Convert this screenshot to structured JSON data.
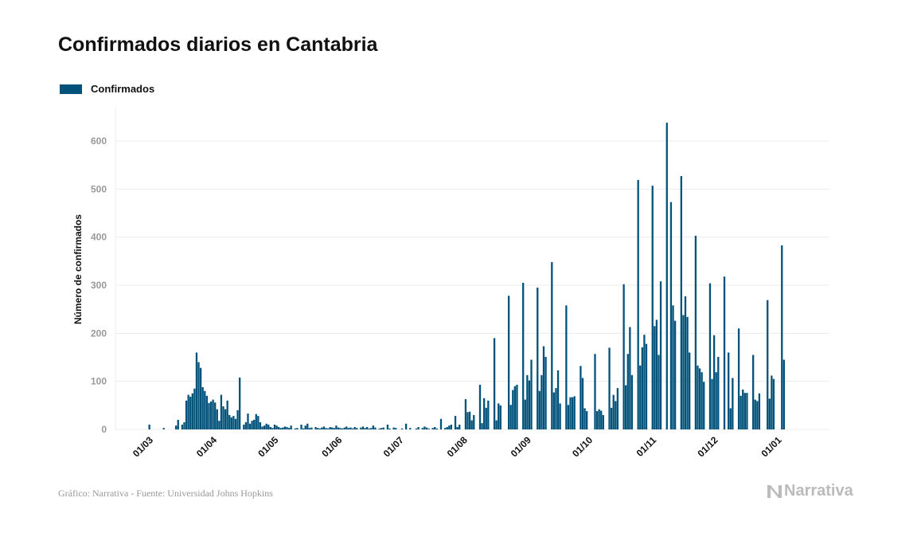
{
  "chart_data": {
    "type": "bar",
    "title": "Confirmados diarios en Cantabria",
    "ylabel": "Número de confirmados",
    "xlabel": "",
    "ylim": [
      0,
      670
    ],
    "yticks": [
      0,
      100,
      200,
      300,
      400,
      500,
      600
    ],
    "grid": true,
    "legend_position": "top-left",
    "color": "#00527a",
    "series": [
      {
        "name": "Confirmados"
      }
    ],
    "xtick_labels": [
      "01/03",
      "01/04",
      "01/05",
      "01/06",
      "01/07",
      "01/08",
      "01/09",
      "01/10",
      "01/11",
      "01/12",
      "01/01"
    ],
    "months": [
      {
        "month": "2020-03",
        "values": [
          0,
          10,
          0,
          0,
          0,
          0,
          0,
          0,
          3,
          0,
          0,
          0,
          0,
          0,
          8,
          20,
          0,
          10,
          15,
          60,
          72,
          68,
          75,
          85,
          160,
          140,
          128,
          88,
          80,
          70,
          55
        ]
      },
      {
        "month": "2020-04",
        "values": [
          58,
          62,
          56,
          42,
          18,
          72,
          48,
          42,
          60,
          30,
          25,
          28,
          22,
          40,
          108,
          0,
          10,
          15,
          33,
          12,
          18,
          20,
          32,
          28,
          15,
          6,
          8,
          12,
          10,
          5
        ]
      },
      {
        "month": "2020-05",
        "values": [
          3,
          10,
          8,
          5,
          3,
          4,
          6,
          5,
          3,
          8,
          0,
          2,
          3,
          0,
          10,
          2,
          8,
          12,
          3,
          4,
          0,
          5,
          3,
          2,
          4,
          6,
          3,
          2,
          5,
          4,
          3
        ]
      },
      {
        "month": "2020-06",
        "values": [
          8,
          4,
          3,
          2,
          4,
          6,
          3,
          4,
          2,
          5,
          3,
          0,
          4,
          6,
          3,
          5,
          2,
          3,
          8,
          4,
          0,
          2,
          3,
          4,
          0,
          10,
          2,
          0,
          4,
          3
        ]
      },
      {
        "month": "2020-07",
        "values": [
          0,
          0,
          2,
          0,
          12,
          0,
          3,
          0,
          0,
          2,
          5,
          0,
          3,
          6,
          4,
          2,
          0,
          3,
          5,
          2,
          0,
          22,
          0,
          3,
          5,
          8,
          10,
          0,
          28,
          5,
          10
        ]
      },
      {
        "month": "2020-08",
        "values": [
          0,
          0,
          63,
          36,
          37,
          19,
          30,
          0,
          0,
          93,
          13,
          65,
          45,
          60,
          0,
          0,
          190,
          19,
          54,
          50,
          0,
          0,
          0,
          278,
          51,
          82,
          90,
          93,
          0,
          0,
          305
        ]
      },
      {
        "month": "2020-09",
        "values": [
          62,
          113,
          102,
          145,
          0,
          0,
          295,
          80,
          113,
          173,
          151,
          0,
          0,
          348,
          77,
          86,
          123,
          54,
          0,
          0,
          258,
          51,
          67,
          67,
          69,
          0,
          0,
          132,
          107,
          44
        ]
      },
      {
        "month": "2020-10",
        "values": [
          38,
          0,
          0,
          0,
          157,
          38,
          42,
          39,
          30,
          0,
          0,
          170,
          45,
          72,
          59,
          86,
          0,
          0,
          302,
          92,
          157,
          213,
          113,
          0,
          0,
          519,
          133,
          171,
          197,
          178,
          0
        ]
      },
      {
        "month": "2020-11",
        "values": [
          0,
          507,
          215,
          228,
          155,
          308,
          0,
          0,
          638,
          0,
          473,
          258,
          226,
          0,
          0,
          527,
          238,
          277,
          234,
          160,
          0,
          0,
          403,
          133,
          127,
          119,
          99,
          0,
          0,
          304
        ]
      },
      {
        "month": "2020-12",
        "values": [
          105,
          196,
          119,
          151,
          0,
          0,
          318,
          0,
          160,
          44,
          107,
          0,
          0,
          210,
          70,
          83,
          76,
          76,
          0,
          0,
          155,
          62,
          59,
          75,
          0,
          0,
          0,
          269,
          64,
          112,
          105
        ]
      },
      {
        "month": "2021-01",
        "values": [
          0,
          0,
          0,
          383,
          145,
          0
        ]
      }
    ]
  },
  "footer": {
    "source": "Gráfico: Narrativa - Fuente: Universidad Johns Hopkins"
  },
  "logo": {
    "text": "Narrativa"
  }
}
